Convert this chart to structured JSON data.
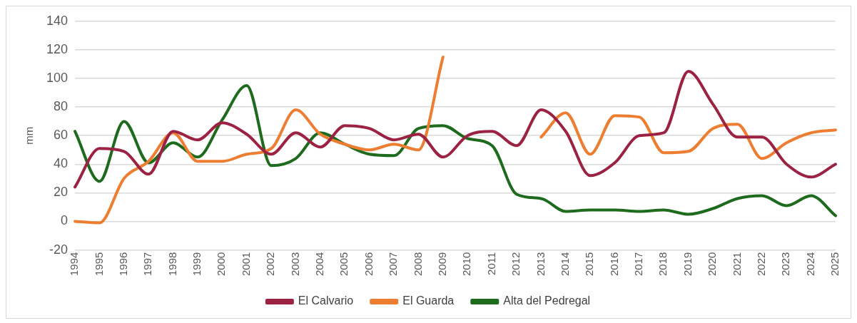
{
  "chart_data": {
    "type": "line",
    "ylabel": "mm",
    "categories": [
      "1994",
      "1995",
      "1996",
      "1997",
      "1998",
      "1999",
      "2000",
      "2001",
      "2002",
      "2003",
      "2004",
      "2005",
      "2006",
      "2007",
      "2008",
      "2009",
      "2010",
      "2011",
      "2012",
      "2013",
      "2014",
      "2015",
      "2016",
      "2017",
      "2018",
      "2019",
      "2020",
      "2021",
      "2022",
      "2023",
      "2024",
      "2025"
    ],
    "series": [
      {
        "name": "El Calvario",
        "color": "#9b2242",
        "values": [
          24,
          51,
          49,
          33,
          63,
          57,
          69,
          61,
          47,
          62,
          52,
          67,
          65,
          57,
          61,
          45,
          60,
          63,
          53,
          78,
          63,
          32,
          41,
          60,
          62,
          105,
          82,
          59,
          59,
          40,
          31,
          40
        ]
      },
      {
        "name": "El Guarda",
        "color": "#ed7d31",
        "values": [
          0,
          -1,
          30,
          42,
          62,
          42,
          42,
          47,
          51,
          78,
          61,
          54,
          50,
          54,
          50,
          115,
          null,
          null,
          null,
          59,
          76,
          47,
          74,
          73,
          48,
          49,
          65,
          68,
          44,
          55,
          62,
          64
        ]
      },
      {
        "name": "Alta del Pedregal",
        "color": "#1e6b1e",
        "values": [
          63,
          28,
          70,
          41,
          55,
          45,
          71,
          95,
          39,
          44,
          62,
          54,
          47,
          46,
          65,
          67,
          58,
          53,
          19,
          16,
          7,
          8,
          8,
          7,
          8,
          5,
          9,
          16,
          18,
          11,
          18,
          4
        ]
      }
    ],
    "ylim": [
      -20,
      140
    ],
    "yticks": [
      -20,
      0,
      20,
      40,
      60,
      80,
      100,
      120,
      140
    ],
    "grid": "y",
    "legend": "bottom",
    "marker": "none",
    "line_style": "solid"
  }
}
